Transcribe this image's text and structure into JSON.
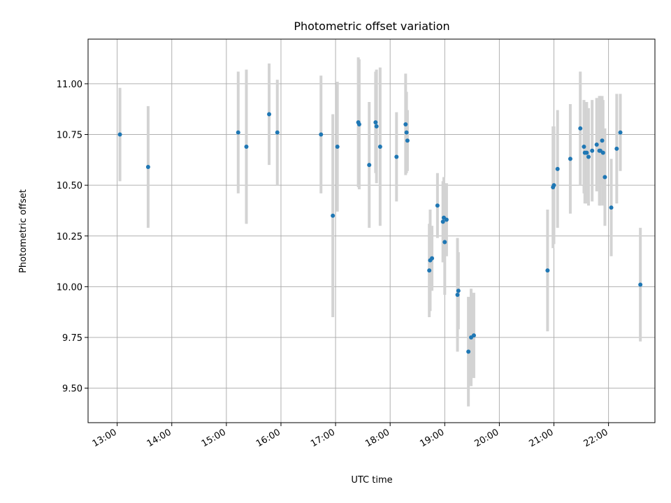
{
  "chart_data": {
    "type": "scatter",
    "title": "Photometric offset variation",
    "xlabel": "UTC time",
    "ylabel": "Photometric offset",
    "x_ticks": [
      "13:00",
      "14:00",
      "15:00",
      "16:00",
      "17:00",
      "18:00",
      "19:00",
      "20:00",
      "21:00",
      "22:00"
    ],
    "y_ticks": [
      "9.50",
      "9.75",
      "10.00",
      "10.25",
      "10.50",
      "10.75",
      "11.00"
    ],
    "xlim": [
      "12:28",
      "22:51"
    ],
    "ylim": [
      9.33,
      11.22
    ],
    "grid": true,
    "colors": {
      "marker": "#1f77b4",
      "errorbar": "#d3d3d3",
      "grid": "#b0b0b0"
    },
    "series": [
      {
        "x": [
          "13:03",
          "13:34",
          "15:13",
          "15:22",
          "15:47",
          "15:56",
          "16:44",
          "16:57",
          "17:02",
          "17:25",
          "17:26",
          "17:37",
          "17:44",
          "17:45",
          "17:49",
          "18:07",
          "18:17",
          "18:18",
          "18:19",
          "18:43",
          "18:44",
          "18:46",
          "18:52",
          "18:58",
          "18:59",
          "19:00",
          "19:02",
          "19:14",
          "19:15",
          "19:26",
          "19:29",
          "19:32",
          "20:53",
          "20:59",
          "21:00",
          "21:04",
          "21:18",
          "21:29",
          "21:33",
          "21:34",
          "21:36",
          "21:38",
          "21:42",
          "21:47",
          "21:50",
          "21:51",
          "21:53",
          "21:54",
          "21:56",
          "22:03",
          "22:09",
          "22:13",
          "22:35"
        ],
        "y": [
          10.75,
          10.59,
          10.76,
          10.69,
          10.85,
          10.76,
          10.75,
          10.35,
          10.69,
          10.81,
          10.8,
          10.6,
          10.81,
          10.79,
          10.69,
          10.64,
          10.8,
          10.76,
          10.72,
          10.08,
          10.13,
          10.14,
          10.4,
          10.32,
          10.34,
          10.22,
          10.33,
          9.96,
          9.98,
          9.68,
          9.75,
          9.76,
          10.08,
          10.49,
          10.5,
          10.58,
          10.63,
          10.78,
          10.69,
          10.66,
          10.66,
          10.64,
          10.67,
          10.7,
          10.67,
          10.67,
          10.72,
          10.66,
          10.54,
          10.39,
          10.68,
          10.76,
          10.01
        ],
        "err": [
          0.23,
          0.3,
          0.3,
          0.38,
          0.25,
          0.26,
          0.29,
          0.5,
          0.32,
          0.32,
          0.32,
          0.31,
          0.25,
          0.28,
          0.39,
          0.22,
          0.25,
          0.2,
          0.15,
          0.23,
          0.25,
          0.16,
          0.16,
          0.2,
          0.2,
          0.26,
          0.18,
          0.28,
          0.19,
          0.27,
          0.24,
          0.21,
          0.3,
          0.3,
          0.29,
          0.29,
          0.27,
          0.28,
          0.23,
          0.25,
          0.25,
          0.24,
          0.25,
          0.23,
          0.27,
          0.27,
          0.22,
          0.26,
          0.24,
          0.24,
          0.27,
          0.19,
          0.28
        ]
      }
    ]
  }
}
